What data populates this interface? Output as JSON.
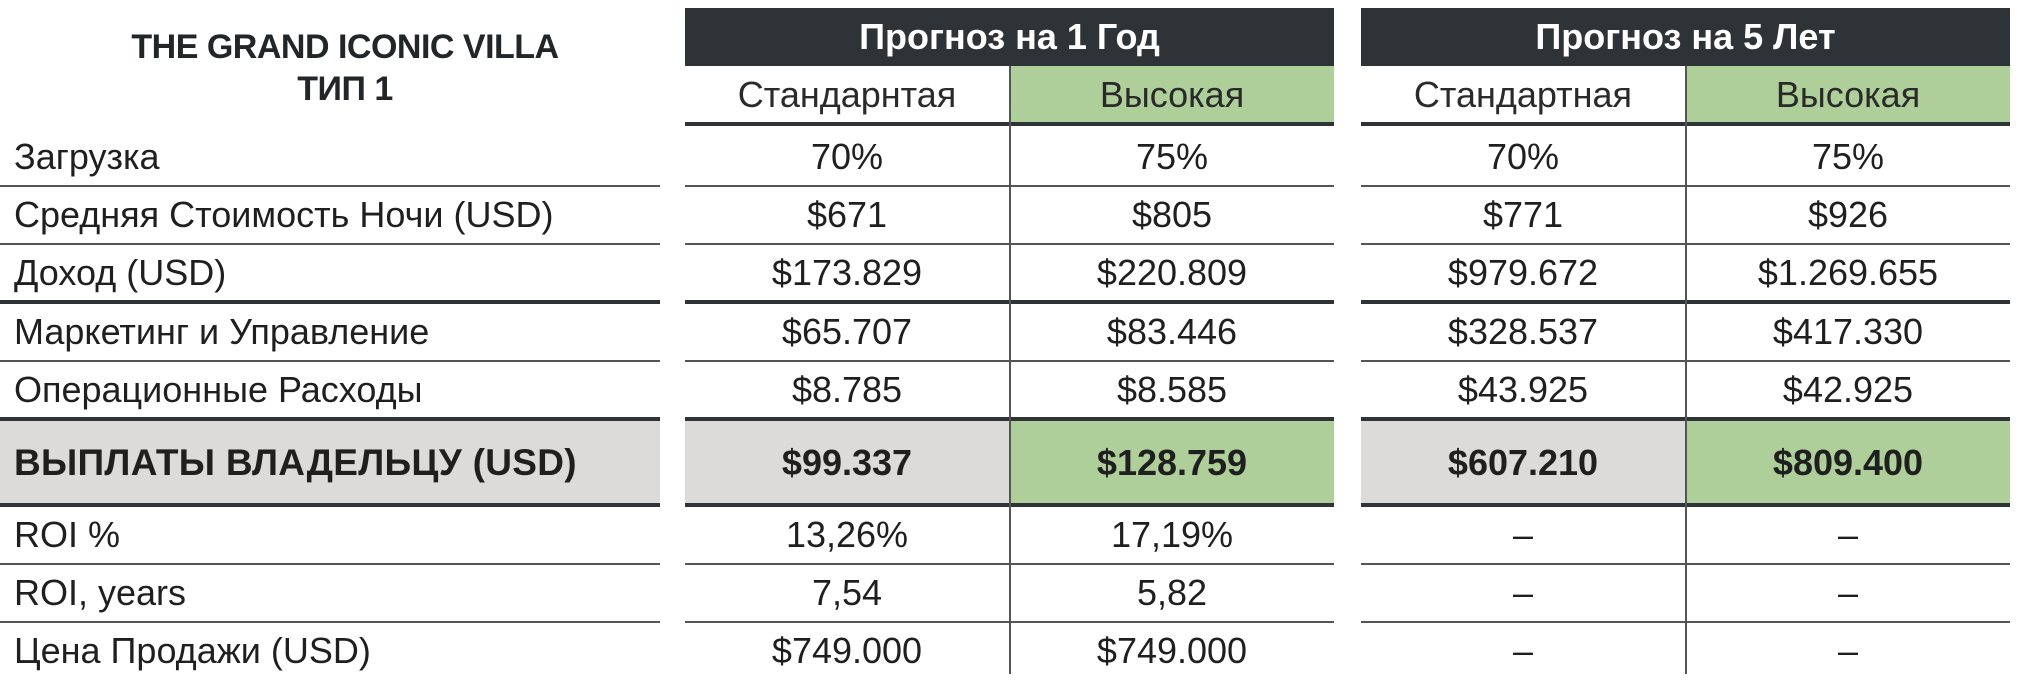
{
  "title": {
    "line1": "THE GRAND ICONIC VILLA",
    "line2": "ТИП 1"
  },
  "groups": [
    {
      "label": "Прогноз на 1 Год"
    },
    {
      "label": "Прогноз на 5 Лет"
    }
  ],
  "subheaders": [
    "Стандарнтая",
    "Высокая",
    "Стандартная",
    "Высокая"
  ],
  "rows": [
    {
      "label": "Загрузка",
      "values": [
        "70%",
        "75%",
        "70%",
        "75%"
      ]
    },
    {
      "label": "Средняя Стоимость Ночи (USD)",
      "values": [
        "$671",
        "$805",
        "$771",
        "$926"
      ]
    },
    {
      "label": "Доход (USD)",
      "values": [
        "$173.829",
        "$220.809",
        "$979.672",
        "$1.269.655"
      ]
    },
    {
      "label": "Маркетинг и Управление",
      "values": [
        "$65.707",
        "$83.446",
        "$328.537",
        "$417.330"
      ]
    },
    {
      "label": "Операционные Расходы",
      "values": [
        "$8.785",
        "$8.585",
        "$43.925",
        "$42.925"
      ]
    },
    {
      "label": "ВЫПЛАТЫ ВЛАДЕЛЬЦУ (USD)",
      "values": [
        "$99.337",
        "$128.759",
        "$607.210",
        "$809.400"
      ]
    },
    {
      "label": "ROI %",
      "values": [
        "13,26%",
        "17,19%",
        "–",
        "–"
      ]
    },
    {
      "label": "ROI, years",
      "values": [
        "7,54",
        "5,82",
        "–",
        "–"
      ]
    },
    {
      "label": "Цена Продажи (USD)",
      "values": [
        "$749.000",
        "$749.000",
        "–",
        "–"
      ]
    }
  ],
  "colors": {
    "header_dark": "#2d3337",
    "highlight_green": "#aecf99",
    "payout_gray": "#dcdbda"
  }
}
